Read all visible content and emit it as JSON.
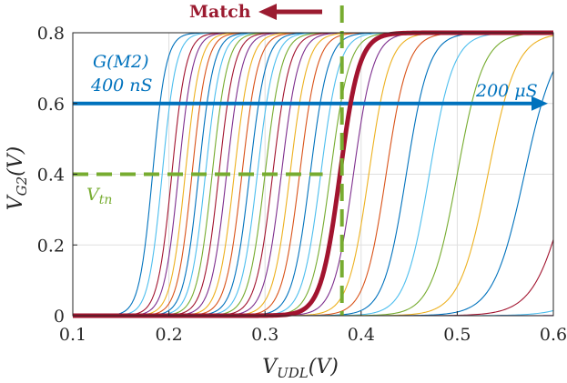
{
  "chart_data": {
    "type": "line",
    "xlabel": "V_UDL(V)",
    "ylabel": "V_G2(V)",
    "xlim": [
      0.1,
      0.6
    ],
    "ylim": [
      0,
      0.8
    ],
    "xticks": [
      0.1,
      0.2,
      0.3,
      0.4,
      0.5,
      0.6
    ],
    "yticks": [
      0,
      0.2,
      0.4,
      0.6,
      0.8
    ],
    "grid": true,
    "curve_model": "sigmoid: y = 0.8 / (1 + exp(-(x - x50) / slope))",
    "sweep_parameter": "G(M2)",
    "sweep_from": "400 nS",
    "sweep_to": "200 µS",
    "series": [
      {
        "x50": 0.183,
        "slope": 0.007,
        "color": "#0072BD"
      },
      {
        "x50": 0.193,
        "slope": 0.0072,
        "color": "#4DBEEE"
      },
      {
        "x50": 0.203,
        "slope": 0.0074,
        "color": "#A2142F"
      },
      {
        "x50": 0.21,
        "slope": 0.0075,
        "color": "#7E2F8E"
      },
      {
        "x50": 0.217,
        "slope": 0.0076,
        "color": "#EDB120"
      },
      {
        "x50": 0.224,
        "slope": 0.0077,
        "color": "#D95319"
      },
      {
        "x50": 0.231,
        "slope": 0.0078,
        "color": "#0072BD"
      },
      {
        "x50": 0.238,
        "slope": 0.0079,
        "color": "#4DBEEE"
      },
      {
        "x50": 0.245,
        "slope": 0.008,
        "color": "#77AC30"
      },
      {
        "x50": 0.252,
        "slope": 0.0081,
        "color": "#A2142F"
      },
      {
        "x50": 0.26,
        "slope": 0.0082,
        "color": "#7E2F8E"
      },
      {
        "x50": 0.268,
        "slope": 0.0083,
        "color": "#EDB120"
      },
      {
        "x50": 0.276,
        "slope": 0.0084,
        "color": "#D95319"
      },
      {
        "x50": 0.284,
        "slope": 0.0085,
        "color": "#0072BD"
      },
      {
        "x50": 0.292,
        "slope": 0.0086,
        "color": "#4DBEEE"
      },
      {
        "x50": 0.3,
        "slope": 0.0087,
        "color": "#77AC30"
      },
      {
        "x50": 0.308,
        "slope": 0.0088,
        "color": "#A2142F"
      },
      {
        "x50": 0.317,
        "slope": 0.0089,
        "color": "#7E2F8E"
      },
      {
        "x50": 0.326,
        "slope": 0.009,
        "color": "#EDB120"
      },
      {
        "x50": 0.336,
        "slope": 0.0092,
        "color": "#D95319"
      },
      {
        "x50": 0.347,
        "slope": 0.0094,
        "color": "#0072BD"
      },
      {
        "x50": 0.358,
        "slope": 0.0096,
        "color": "#4DBEEE"
      },
      {
        "x50": 0.368,
        "slope": 0.0098,
        "color": "#77AC30"
      },
      {
        "x50": 0.378,
        "slope": 0.01,
        "color": "#A2142F",
        "highlight": true
      },
      {
        "x50": 0.392,
        "slope": 0.0103,
        "color": "#7E2F8E"
      },
      {
        "x50": 0.408,
        "slope": 0.0107,
        "color": "#EDB120"
      },
      {
        "x50": 0.426,
        "slope": 0.0112,
        "color": "#D95319"
      },
      {
        "x50": 0.447,
        "slope": 0.0118,
        "color": "#0072BD"
      },
      {
        "x50": 0.471,
        "slope": 0.0126,
        "color": "#4DBEEE"
      },
      {
        "x50": 0.5,
        "slope": 0.0136,
        "color": "#77AC30"
      },
      {
        "x50": 0.532,
        "slope": 0.0148,
        "color": "#EDB120"
      },
      {
        "x50": 0.57,
        "slope": 0.0162,
        "color": "#0072BD"
      },
      {
        "x50": 0.618,
        "slope": 0.018,
        "color": "#A2142F"
      },
      {
        "x50": 0.68,
        "slope": 0.02,
        "color": "#4DBEEE"
      },
      {
        "x50": 0.76,
        "slope": 0.022,
        "color": "#7E2F8E"
      },
      {
        "x50": 0.85,
        "slope": 0.024,
        "color": "#77AC30"
      }
    ],
    "match_line": {
      "x": 0.38,
      "color": "#77AC30"
    },
    "vtn_line": {
      "y": 0.4,
      "x_from": 0.1,
      "x_to": 0.36,
      "color": "#77AC30"
    },
    "sweep_arrow": {
      "y": 0.6,
      "x_from": 0.1,
      "x_to": 0.6,
      "color": "#0072BD"
    }
  },
  "annotations": {
    "match_label": "Match",
    "match_color": "#9B1B30",
    "sweep_title": "G(M2)",
    "sweep_start": "400 nS",
    "sweep_end": "200 μS",
    "vtn_label": "V_tn",
    "blue": "#0072BD",
    "green": "#77AC30"
  }
}
